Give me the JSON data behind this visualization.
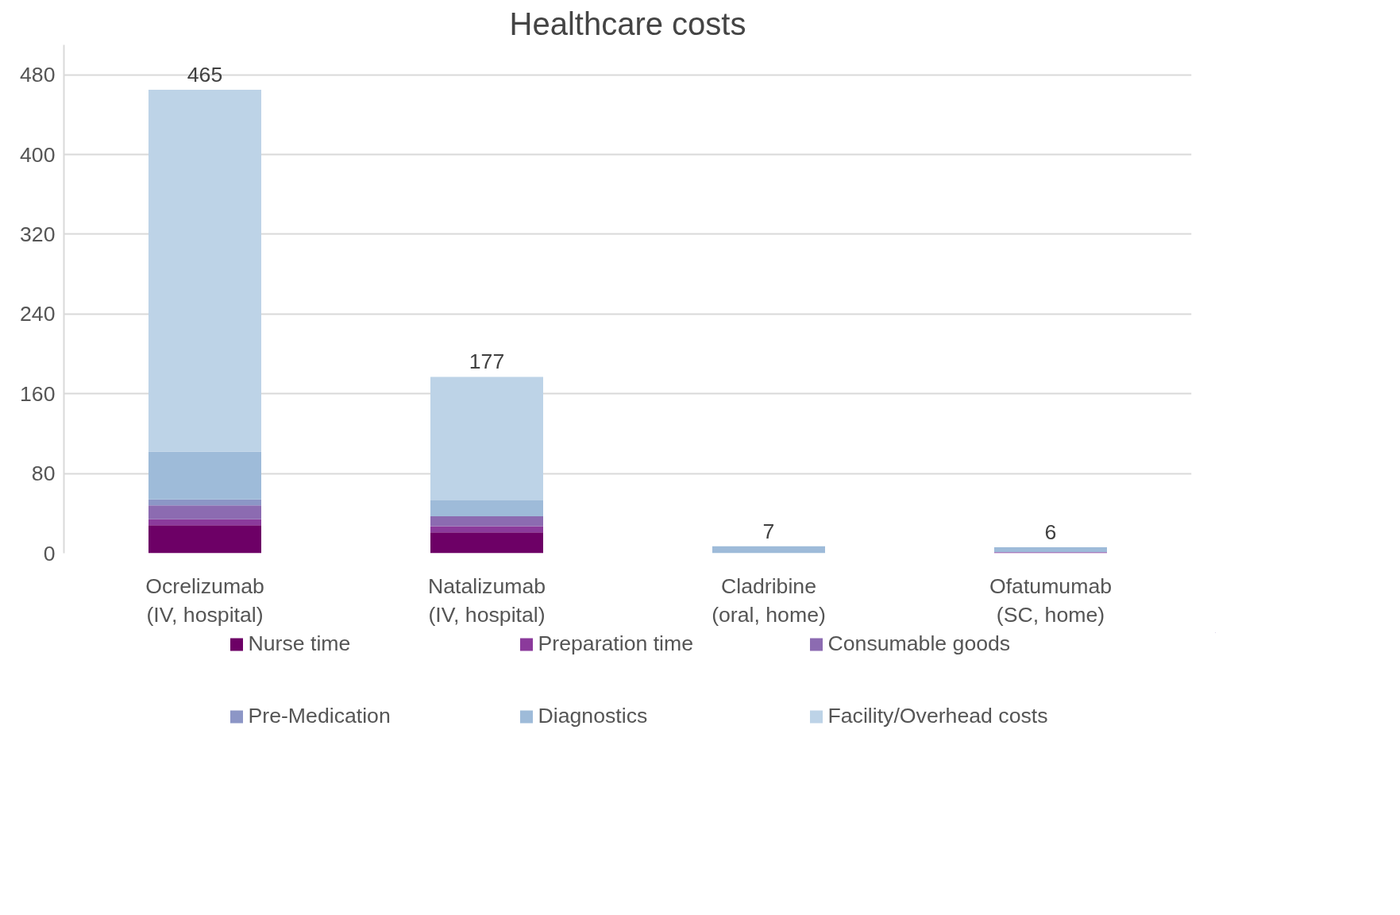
{
  "chart_data": {
    "type": "bar",
    "title": "Healthcare costs",
    "stacked": true,
    "categories": [
      "Ocrelizumab\n(IV, hospital)",
      "Natalizumab\n(IV, hospital)",
      "Cladribine\n(oral, home)",
      "Ofatumumab\n(SC, home)"
    ],
    "series": [
      {
        "name": "Nurse time",
        "color": "#6d0066",
        "values": [
          28,
          21,
          0,
          0
        ]
      },
      {
        "name": "Preparation time",
        "color": "#8b3a9b",
        "values": [
          6,
          6,
          0,
          1
        ]
      },
      {
        "name": "Consumable goods",
        "color": "#8c6bb1",
        "values": [
          14,
          10,
          0,
          0
        ]
      },
      {
        "name": "Pre-Medication",
        "color": "#8c96c6",
        "values": [
          6,
          0,
          0,
          0
        ]
      },
      {
        "name": "Diagnostics",
        "color": "#9ebbd9",
        "values": [
          48,
          16,
          7,
          5
        ]
      },
      {
        "name": "Facility/Overhead costs",
        "color": "#bdd3e7",
        "values": [
          363,
          124,
          0,
          0
        ]
      }
    ],
    "totals": [
      "465",
      "177",
      "7",
      "6"
    ],
    "ylim": [
      0,
      510
    ],
    "yticks": [
      0,
      80,
      160,
      240,
      320,
      400,
      480
    ],
    "grid": "y",
    "legend": "bottom"
  }
}
